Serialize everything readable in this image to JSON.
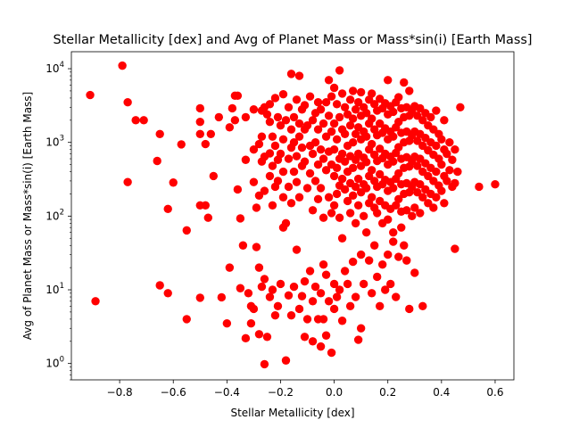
{
  "chart_data": {
    "type": "scatter",
    "title": "Stellar Metallicity [dex] and Avg of Planet Mass or Mass*sin(i) [Earth Mass]",
    "xlabel": "Stellar Metallicity [dex]",
    "ylabel": "Avg of Planet Mass or Mass*sin(i) [Earth Mass]",
    "xlim": [
      -0.98,
      0.67
    ],
    "ylim": [
      0.6,
      17000
    ],
    "yscale": "log",
    "xticks": [
      -0.8,
      -0.6,
      -0.4,
      -0.2,
      0.0,
      0.2,
      0.4,
      0.6
    ],
    "xtick_labels": [
      "−0.8",
      "−0.6",
      "−0.4",
      "−0.2",
      "0.0",
      "0.2",
      "0.4",
      "0.6"
    ],
    "yticks": [
      1,
      10,
      100,
      1000,
      10000
    ],
    "ytick_labels": [
      "10^0",
      "10^1",
      "10^2",
      "10^3",
      "10^4"
    ],
    "grid": false,
    "legend": "none",
    "marker_color": "#ff0000",
    "points": [
      [
        -0.91,
        4400
      ],
      [
        -0.89,
        7
      ],
      [
        -0.79,
        11000
      ],
      [
        -0.77,
        3500
      ],
      [
        -0.77,
        290
      ],
      [
        -0.74,
        2000
      ],
      [
        -0.71,
        2000
      ],
      [
        -0.66,
        560
      ],
      [
        -0.65,
        1300
      ],
      [
        -0.65,
        11.5
      ],
      [
        -0.62,
        125
      ],
      [
        -0.62,
        9
      ],
      [
        -0.6,
        285
      ],
      [
        -0.57,
        940
      ],
      [
        -0.55,
        64
      ],
      [
        -0.55,
        4
      ],
      [
        -0.5,
        2900
      ],
      [
        -0.5,
        1900
      ],
      [
        -0.5,
        1300
      ],
      [
        -0.5,
        140
      ],
      [
        -0.5,
        7.8
      ],
      [
        -0.48,
        140
      ],
      [
        -0.48,
        950
      ],
      [
        -0.47,
        95
      ],
      [
        -0.46,
        1300
      ],
      [
        -0.45,
        350
      ],
      [
        -0.43,
        2200
      ],
      [
        -0.42,
        7.9
      ],
      [
        -0.4,
        3.5
      ],
      [
        -0.39,
        1600
      ],
      [
        -0.39,
        20
      ],
      [
        -0.38,
        2900
      ],
      [
        -0.37,
        2000
      ],
      [
        -0.37,
        4300
      ],
      [
        -0.36,
        4300
      ],
      [
        -0.36,
        230
      ],
      [
        -0.35,
        10.5
      ],
      [
        -0.35,
        93
      ],
      [
        -0.34,
        40
      ],
      [
        -0.33,
        2200
      ],
      [
        -0.33,
        580
      ],
      [
        -0.33,
        2.2
      ],
      [
        -0.32,
        9
      ],
      [
        -0.31,
        6
      ],
      [
        -0.31,
        3.5
      ],
      [
        -0.3,
        2800
      ],
      [
        -0.3,
        800
      ],
      [
        -0.3,
        290
      ],
      [
        -0.3,
        5.5
      ],
      [
        -0.29,
        130
      ],
      [
        -0.29,
        38
      ],
      [
        -0.28,
        950
      ],
      [
        -0.28,
        190
      ],
      [
        -0.28,
        20
      ],
      [
        -0.28,
        2.5
      ],
      [
        -0.27,
        2700
      ],
      [
        -0.27,
        1200
      ],
      [
        -0.27,
        550
      ],
      [
        -0.27,
        11
      ],
      [
        -0.26,
        3000
      ],
      [
        -0.26,
        640
      ],
      [
        -0.26,
        220
      ],
      [
        -0.26,
        14
      ],
      [
        -0.26,
        0.98
      ],
      [
        -0.25,
        2400
      ],
      [
        -0.25,
        2.3
      ],
      [
        -0.24,
        3300
      ],
      [
        -0.24,
        1900
      ],
      [
        -0.24,
        710
      ],
      [
        -0.24,
        350
      ],
      [
        -0.24,
        8
      ],
      [
        -0.23,
        1200
      ],
      [
        -0.23,
        480
      ],
      [
        -0.23,
        140
      ],
      [
        -0.23,
        10
      ],
      [
        -0.22,
        4000
      ],
      [
        -0.22,
        900
      ],
      [
        -0.22,
        250
      ],
      [
        -0.22,
        4.5
      ],
      [
        -0.21,
        2200
      ],
      [
        -0.21,
        580
      ],
      [
        -0.21,
        300
      ],
      [
        -0.21,
        6
      ],
      [
        -0.2,
        1700
      ],
      [
        -0.2,
        700
      ],
      [
        -0.2,
        12
      ],
      [
        -0.19,
        4500
      ],
      [
        -0.19,
        1100
      ],
      [
        -0.19,
        400
      ],
      [
        -0.19,
        180
      ],
      [
        -0.19,
        70
      ],
      [
        -0.18,
        2000
      ],
      [
        -0.18,
        80
      ],
      [
        -0.18,
        1.1
      ],
      [
        -0.17,
        3000
      ],
      [
        -0.17,
        600
      ],
      [
        -0.17,
        250
      ],
      [
        -0.17,
        8.4
      ],
      [
        -0.16,
        8500
      ],
      [
        -0.16,
        1500
      ],
      [
        -0.16,
        850
      ],
      [
        -0.16,
        150
      ],
      [
        -0.16,
        4.5
      ],
      [
        -0.15,
        2200
      ],
      [
        -0.15,
        1000
      ],
      [
        -0.15,
        400
      ],
      [
        -0.15,
        11
      ],
      [
        -0.14,
        3800
      ],
      [
        -0.14,
        650
      ],
      [
        -0.14,
        290
      ],
      [
        -0.14,
        35
      ],
      [
        -0.13,
        8000
      ],
      [
        -0.13,
        1800
      ],
      [
        -0.13,
        1200
      ],
      [
        -0.13,
        180
      ],
      [
        -0.13,
        5.5
      ],
      [
        -0.12,
        2800
      ],
      [
        -0.12,
        850
      ],
      [
        -0.12,
        480
      ],
      [
        -0.12,
        8.2
      ],
      [
        -0.11,
        3200
      ],
      [
        -0.11,
        1500
      ],
      [
        -0.11,
        550
      ],
      [
        -0.11,
        13
      ],
      [
        -0.11,
        2.3
      ],
      [
        -0.1,
        1700
      ],
      [
        -0.1,
        240
      ],
      [
        -0.1,
        4
      ],
      [
        -0.09,
        4200
      ],
      [
        -0.09,
        900
      ],
      [
        -0.09,
        380
      ],
      [
        -0.09,
        18
      ],
      [
        -0.08,
        2000
      ],
      [
        -0.08,
        700
      ],
      [
        -0.08,
        120
      ],
      [
        -0.08,
        7
      ],
      [
        -0.08,
        2
      ],
      [
        -0.07,
        2500
      ],
      [
        -0.07,
        1000
      ],
      [
        -0.07,
        300
      ],
      [
        -0.07,
        11
      ],
      [
        -0.06,
        3500
      ],
      [
        -0.06,
        1500
      ],
      [
        -0.06,
        500
      ],
      [
        -0.06,
        170
      ],
      [
        -0.06,
        4
      ],
      [
        -0.05,
        2800
      ],
      [
        -0.05,
        800
      ],
      [
        -0.05,
        240
      ],
      [
        -0.05,
        9
      ],
      [
        -0.05,
        1.7
      ],
      [
        -0.04,
        1800
      ],
      [
        -0.04,
        600
      ],
      [
        -0.04,
        95
      ],
      [
        -0.04,
        22
      ],
      [
        -0.04,
        4
      ],
      [
        -0.03,
        3500
      ],
      [
        -0.03,
        1200
      ],
      [
        -0.03,
        420
      ],
      [
        -0.03,
        16
      ],
      [
        -0.03,
        2.4
      ],
      [
        -0.02,
        7000
      ],
      [
        -0.02,
        2300
      ],
      [
        -0.02,
        750
      ],
      [
        -0.02,
        180
      ],
      [
        -0.02,
        7
      ],
      [
        -0.01,
        4200
      ],
      [
        -0.01,
        1400
      ],
      [
        -0.01,
        500
      ],
      [
        -0.01,
        110
      ],
      [
        -0.01,
        1.4
      ],
      [
        0.0,
        5500
      ],
      [
        0.0,
        1800
      ],
      [
        0.0,
        800
      ],
      [
        0.0,
        350
      ],
      [
        0.0,
        140
      ],
      [
        0.0,
        12
      ],
      [
        0.0,
        5.5
      ],
      [
        0.01,
        3300
      ],
      [
        0.01,
        1100
      ],
      [
        0.01,
        450
      ],
      [
        0.01,
        200
      ],
      [
        0.01,
        8
      ],
      [
        0.02,
        9500
      ],
      [
        0.02,
        2200
      ],
      [
        0.02,
        600
      ],
      [
        0.02,
        260
      ],
      [
        0.02,
        95
      ],
      [
        0.02,
        10
      ],
      [
        0.03,
        4600
      ],
      [
        0.03,
        1500
      ],
      [
        0.03,
        700
      ],
      [
        0.03,
        320
      ],
      [
        0.03,
        50
      ],
      [
        0.03,
        3.8
      ],
      [
        0.04,
        3000
      ],
      [
        0.04,
        1300
      ],
      [
        0.04,
        550
      ],
      [
        0.04,
        230
      ],
      [
        0.04,
        18
      ],
      [
        0.05,
        2400
      ],
      [
        0.05,
        900
      ],
      [
        0.05,
        400
      ],
      [
        0.05,
        160
      ],
      [
        0.05,
        12
      ],
      [
        0.06,
        3800
      ],
      [
        0.06,
        1700
      ],
      [
        0.06,
        650
      ],
      [
        0.06,
        280
      ],
      [
        0.06,
        110
      ],
      [
        0.06,
        6
      ],
      [
        0.07,
        5000
      ],
      [
        0.07,
        2100
      ],
      [
        0.07,
        1000
      ],
      [
        0.07,
        450
      ],
      [
        0.07,
        190
      ],
      [
        0.07,
        24
      ],
      [
        0.08,
        2800
      ],
      [
        0.08,
        1300
      ],
      [
        0.08,
        580
      ],
      [
        0.08,
        250
      ],
      [
        0.08,
        80
      ],
      [
        0.08,
        8
      ],
      [
        0.09,
        3500
      ],
      [
        0.09,
        1600
      ],
      [
        0.09,
        700
      ],
      [
        0.09,
        320
      ],
      [
        0.09,
        140
      ],
      [
        0.09,
        2.1
      ],
      [
        0.1,
        4800
      ],
      [
        0.1,
        2300
      ],
      [
        0.1,
        1100
      ],
      [
        0.1,
        480
      ],
      [
        0.1,
        210
      ],
      [
        0.1,
        30
      ],
      [
        0.1,
        3
      ],
      [
        0.11,
        3000
      ],
      [
        0.11,
        1400
      ],
      [
        0.11,
        620
      ],
      [
        0.11,
        270
      ],
      [
        0.11,
        100
      ],
      [
        0.11,
        12
      ],
      [
        0.12,
        2500
      ],
      [
        0.12,
        1200
      ],
      [
        0.12,
        540
      ],
      [
        0.12,
        240
      ],
      [
        0.12,
        60
      ],
      [
        0.13,
        3800
      ],
      [
        0.13,
        1800
      ],
      [
        0.13,
        800
      ],
      [
        0.13,
        350
      ],
      [
        0.13,
        150
      ],
      [
        0.13,
        25
      ],
      [
        0.14,
        4600
      ],
      [
        0.14,
        2100
      ],
      [
        0.14,
        950
      ],
      [
        0.14,
        420
      ],
      [
        0.14,
        180
      ],
      [
        0.14,
        9
      ],
      [
        0.15,
        3300
      ],
      [
        0.15,
        1500
      ],
      [
        0.15,
        680
      ],
      [
        0.15,
        300
      ],
      [
        0.15,
        130
      ],
      [
        0.15,
        40
      ],
      [
        0.16,
        2700
      ],
      [
        0.16,
        1250
      ],
      [
        0.16,
        560
      ],
      [
        0.16,
        250
      ],
      [
        0.16,
        110
      ],
      [
        0.16,
        15
      ],
      [
        0.17,
        3900
      ],
      [
        0.17,
        1800
      ],
      [
        0.17,
        820
      ],
      [
        0.17,
        370
      ],
      [
        0.17,
        160
      ],
      [
        0.17,
        6
      ],
      [
        0.18,
        2900
      ],
      [
        0.18,
        1350
      ],
      [
        0.18,
        610
      ],
      [
        0.18,
        270
      ],
      [
        0.18,
        80
      ],
      [
        0.18,
        22
      ],
      [
        0.19,
        3400
      ],
      [
        0.19,
        1550
      ],
      [
        0.19,
        700
      ],
      [
        0.19,
        310
      ],
      [
        0.19,
        140
      ],
      [
        0.19,
        10
      ],
      [
        0.2,
        7000
      ],
      [
        0.2,
        2400
      ],
      [
        0.2,
        1100
      ],
      [
        0.2,
        500
      ],
      [
        0.2,
        220
      ],
      [
        0.2,
        90
      ],
      [
        0.2,
        30
      ],
      [
        0.21,
        3100
      ],
      [
        0.21,
        1400
      ],
      [
        0.21,
        640
      ],
      [
        0.21,
        290
      ],
      [
        0.21,
        125
      ],
      [
        0.21,
        12
      ],
      [
        0.22,
        2600
      ],
      [
        0.22,
        1200
      ],
      [
        0.22,
        550
      ],
      [
        0.22,
        240
      ],
      [
        0.22,
        60
      ],
      [
        0.22,
        45
      ],
      [
        0.23,
        3500
      ],
      [
        0.23,
        1600
      ],
      [
        0.23,
        720
      ],
      [
        0.23,
        320
      ],
      [
        0.23,
        140
      ],
      [
        0.23,
        8
      ],
      [
        0.24,
        4100
      ],
      [
        0.24,
        1900
      ],
      [
        0.24,
        860
      ],
      [
        0.24,
        380
      ],
      [
        0.24,
        170
      ],
      [
        0.24,
        28
      ],
      [
        0.25,
        2900
      ],
      [
        0.25,
        1350
      ],
      [
        0.25,
        600
      ],
      [
        0.25,
        270
      ],
      [
        0.25,
        115
      ],
      [
        0.25,
        70
      ],
      [
        0.26,
        6500
      ],
      [
        0.26,
        2200
      ],
      [
        0.26,
        1000
      ],
      [
        0.26,
        450
      ],
      [
        0.26,
        200
      ],
      [
        0.26,
        40
      ],
      [
        0.27,
        3000
      ],
      [
        0.27,
        1400
      ],
      [
        0.27,
        630
      ],
      [
        0.27,
        280
      ],
      [
        0.27,
        120
      ],
      [
        0.27,
        25
      ],
      [
        0.28,
        5000
      ],
      [
        0.28,
        2300
      ],
      [
        0.28,
        1050
      ],
      [
        0.28,
        470
      ],
      [
        0.28,
        210
      ],
      [
        0.28,
        5.5
      ],
      [
        0.29,
        2700
      ],
      [
        0.29,
        1250
      ],
      [
        0.29,
        560
      ],
      [
        0.29,
        250
      ],
      [
        0.29,
        100
      ],
      [
        0.3,
        3100
      ],
      [
        0.3,
        1400
      ],
      [
        0.3,
        640
      ],
      [
        0.3,
        290
      ],
      [
        0.3,
        130
      ],
      [
        0.3,
        17
      ],
      [
        0.31,
        2300
      ],
      [
        0.31,
        1050
      ],
      [
        0.31,
        480
      ],
      [
        0.31,
        210
      ],
      [
        0.32,
        2900
      ],
      [
        0.32,
        1300
      ],
      [
        0.32,
        600
      ],
      [
        0.32,
        270
      ],
      [
        0.32,
        110
      ],
      [
        0.33,
        2000
      ],
      [
        0.33,
        900
      ],
      [
        0.33,
        400
      ],
      [
        0.33,
        180
      ],
      [
        0.33,
        6
      ],
      [
        0.34,
        2500
      ],
      [
        0.34,
        1150
      ],
      [
        0.34,
        520
      ],
      [
        0.34,
        230
      ],
      [
        0.35,
        1700
      ],
      [
        0.35,
        780
      ],
      [
        0.35,
        350
      ],
      [
        0.35,
        150
      ],
      [
        0.36,
        2200
      ],
      [
        0.36,
        1000
      ],
      [
        0.36,
        450
      ],
      [
        0.36,
        200
      ],
      [
        0.37,
        1500
      ],
      [
        0.37,
        680
      ],
      [
        0.37,
        300
      ],
      [
        0.37,
        130
      ],
      [
        0.38,
        2700
      ],
      [
        0.38,
        900
      ],
      [
        0.38,
        400
      ],
      [
        0.38,
        180
      ],
      [
        0.39,
        1300
      ],
      [
        0.39,
        600
      ],
      [
        0.39,
        260
      ],
      [
        0.4,
        1100
      ],
      [
        0.4,
        500
      ],
      [
        0.4,
        220
      ],
      [
        0.41,
        2000
      ],
      [
        0.41,
        800
      ],
      [
        0.41,
        350
      ],
      [
        0.41,
        150
      ],
      [
        0.42,
        700
      ],
      [
        0.42,
        300
      ],
      [
        0.43,
        1000
      ],
      [
        0.43,
        420
      ],
      [
        0.44,
        580
      ],
      [
        0.44,
        250
      ],
      [
        0.45,
        800
      ],
      [
        0.45,
        280
      ],
      [
        0.45,
        36
      ],
      [
        0.46,
        400
      ],
      [
        0.47,
        3000
      ],
      [
        0.54,
        250
      ],
      [
        0.6,
        270
      ]
    ]
  }
}
